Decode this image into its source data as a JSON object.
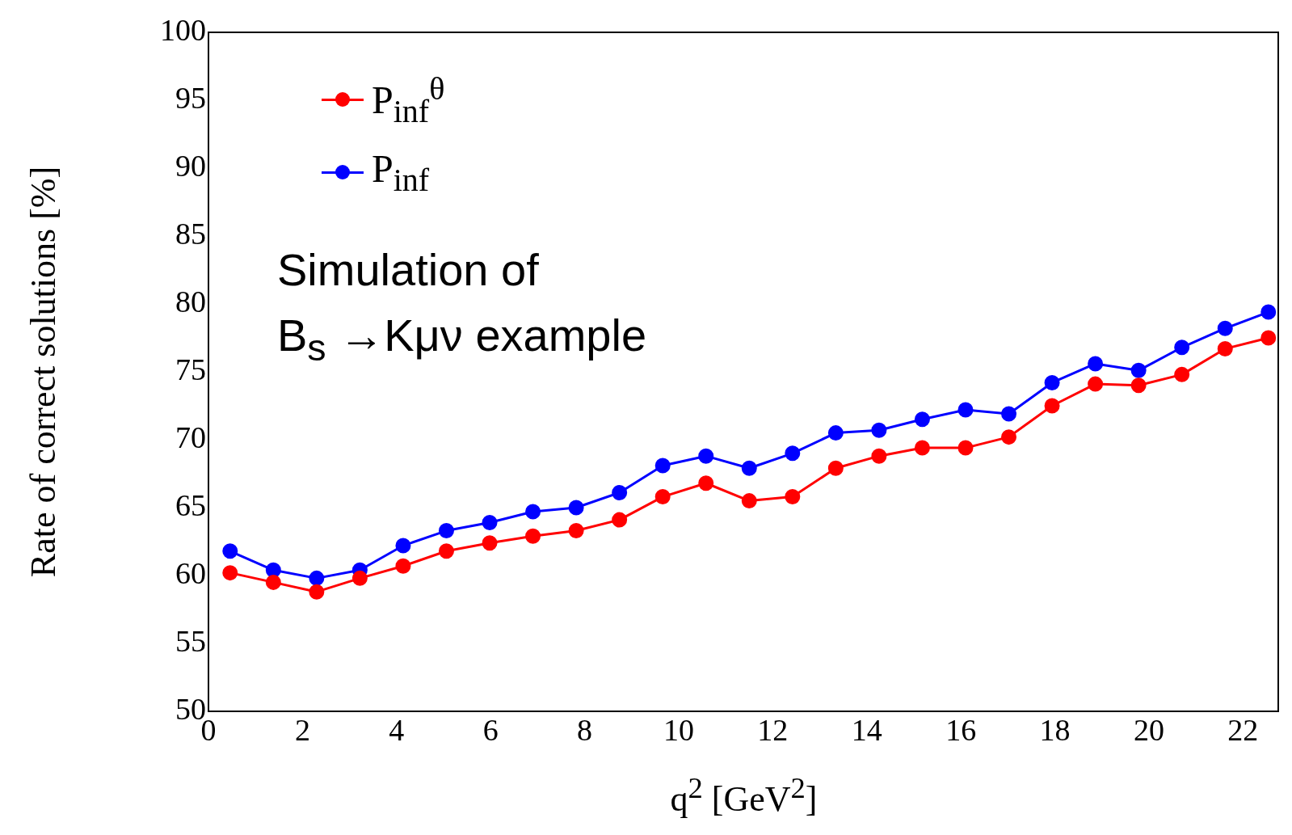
{
  "chart_data": {
    "type": "line",
    "xlabel": "q$^{2}$ [GeV$^{2}$]",
    "ylabel": "Rate of correct solutions [%]",
    "x": [
      0.46,
      1.38,
      2.3,
      3.22,
      4.14,
      5.06,
      5.98,
      6.9,
      7.82,
      8.74,
      9.66,
      10.58,
      11.5,
      12.42,
      13.34,
      14.26,
      15.18,
      16.1,
      17.02,
      17.94,
      18.86,
      19.78,
      20.7,
      21.62,
      22.54
    ],
    "series": [
      {
        "name": "P$_{inf}$$^{θ}$",
        "color": "#ff0000",
        "values": [
          60.2,
          59.5,
          58.8,
          59.8,
          60.7,
          61.8,
          62.4,
          62.9,
          63.3,
          64.1,
          65.8,
          66.8,
          65.5,
          65.8,
          67.9,
          68.8,
          69.4,
          69.4,
          70.2,
          72.5,
          74.1,
          74.0,
          74.8,
          76.7,
          77.5
        ]
      },
      {
        "name": "P$_{inf}$",
        "color": "#0000ff",
        "values": [
          61.8,
          60.4,
          59.8,
          60.4,
          62.2,
          63.3,
          63.9,
          64.7,
          65.0,
          66.1,
          68.1,
          68.8,
          67.9,
          69.0,
          70.5,
          70.7,
          71.5,
          72.2,
          71.9,
          74.2,
          75.6,
          75.1,
          76.8,
          78.2,
          79.4
        ]
      }
    ],
    "xlim": [
      0,
      22.75
    ],
    "xticks": [
      0,
      2,
      4,
      6,
      8,
      10,
      12,
      14,
      16,
      18,
      20,
      22
    ],
    "ylim": [
      50,
      100
    ],
    "yticks": [
      50,
      55,
      60,
      65,
      70,
      75,
      80,
      85,
      90,
      95,
      100
    ],
    "marker": "circle",
    "legend": "top left",
    "annotations": [
      "Simulation of\nB$_{s}$ →Kμν example"
    ]
  }
}
